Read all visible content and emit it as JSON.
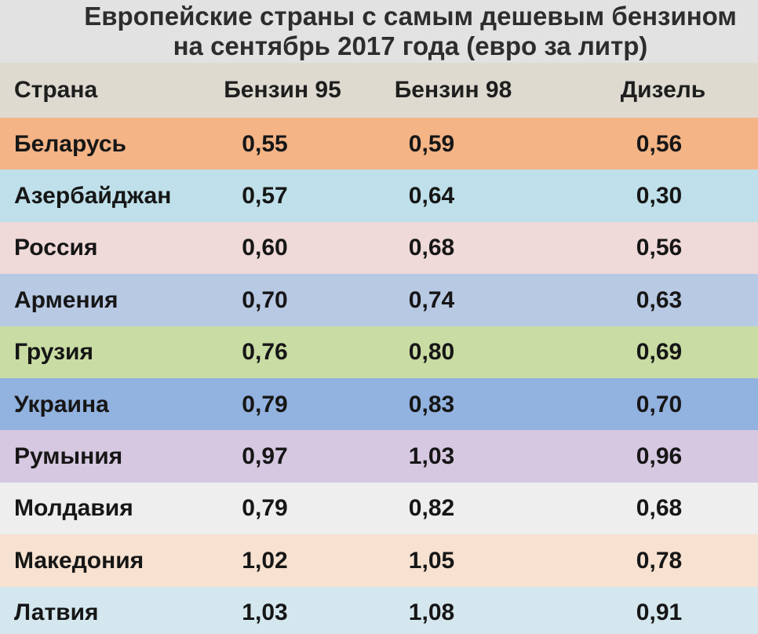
{
  "title": {
    "line1": "Европейские страны с самым дешевым бензином",
    "line2": "на сентябрь 2017 года (евро за литр)"
  },
  "colors": {
    "header_band": "#dedad0",
    "rows": [
      "#f4b486",
      "#bfe0ea",
      "#efd9d9",
      "#b8c9e4",
      "#c9dca3",
      "#92b2df",
      "#d6c8e0",
      "#eeeeee",
      "#f7e1d0",
      "#d4e7ef"
    ]
  },
  "chart_data": {
    "type": "table",
    "title": "Европейские страны с самым дешевым бензином на сентябрь 2017 года (евро за литр)",
    "columns": [
      "Страна",
      "Бензин 95",
      "Бензин 98",
      "Дизель"
    ],
    "rows": [
      {
        "country": "Беларусь",
        "b95": "0,55",
        "b98": "0,59",
        "diesel": "0,56"
      },
      {
        "country": "Азербайджан",
        "b95": "0,57",
        "b98": "0,64",
        "diesel": "0,30"
      },
      {
        "country": "Россия",
        "b95": "0,60",
        "b98": "0,68",
        "diesel": "0,56"
      },
      {
        "country": "Армения",
        "b95": "0,70",
        "b98": "0,74",
        "diesel": "0,63"
      },
      {
        "country": "Грузия",
        "b95": "0,76",
        "b98": "0,80",
        "diesel": "0,69"
      },
      {
        "country": "Украина",
        "b95": "0,79",
        "b98": "0,83",
        "diesel": "0,70"
      },
      {
        "country": "Румыния",
        "b95": "0,97",
        "b98": "1,03",
        "diesel": "0,96"
      },
      {
        "country": "Молдавия",
        "b95": "0,79",
        "b98": "0,82",
        "diesel": "0,68"
      },
      {
        "country": "Македония",
        "b95": "1,02",
        "b98": "1,05",
        "diesel": "0,78"
      },
      {
        "country": "Латвия",
        "b95": "1,03",
        "b98": "1,08",
        "diesel": "0,91"
      }
    ]
  }
}
